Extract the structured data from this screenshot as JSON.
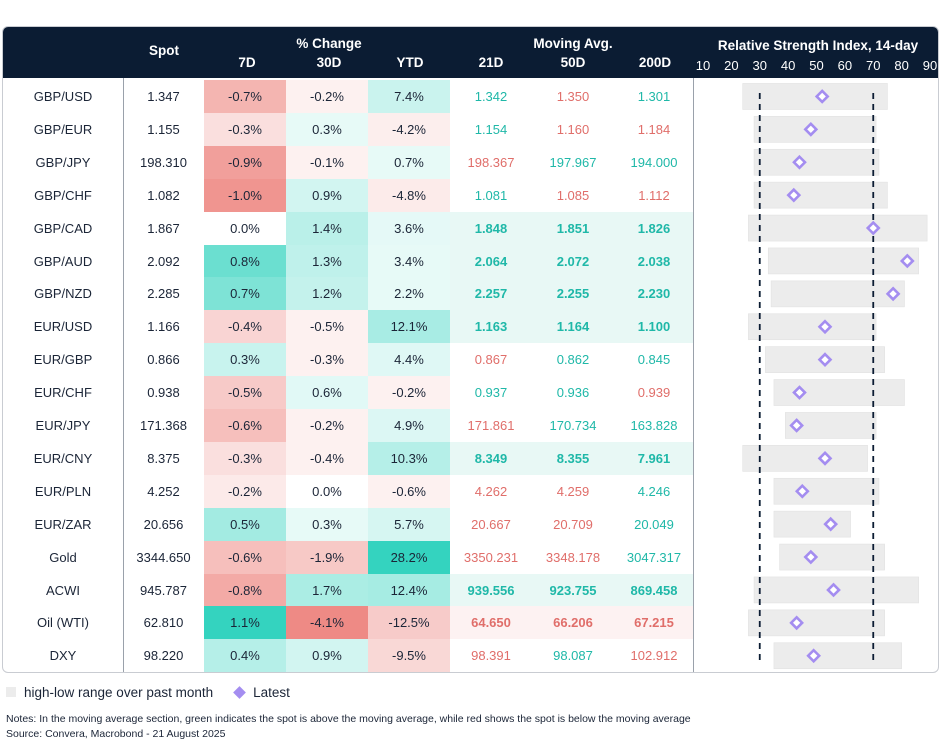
{
  "header": {
    "spot": "Spot",
    "pct_change": "% Change",
    "moving_avg": "Moving Avg.",
    "rsi_title": "Relative Strength Index, 14-day",
    "cols": [
      "7D",
      "30D",
      "YTD",
      "21D",
      "50D",
      "200D"
    ]
  },
  "chart_data": {
    "type": "table",
    "columns": [
      "Asset",
      "Spot",
      "7D",
      "30D",
      "YTD",
      "21D",
      "50D",
      "200D",
      "RSI low",
      "RSI high",
      "RSI latest"
    ],
    "rsi_axis": {
      "min": 10,
      "max": 90,
      "ticks": [
        10,
        20,
        30,
        40,
        50,
        60,
        70,
        80,
        90
      ],
      "dashed_lines": [
        30,
        70
      ]
    },
    "rows": [
      {
        "name": "GBP/USD",
        "spot": "1.347",
        "d7": "-0.7%",
        "d30": "-0.2%",
        "ytd": "7.4%",
        "ma21": "1.342",
        "ma50": "1.350",
        "ma200": "1.301",
        "rsi_low": 24,
        "rsi_high": 75,
        "rsi": 52
      },
      {
        "name": "GBP/EUR",
        "spot": "1.155",
        "d7": "-0.3%",
        "d30": "0.3%",
        "ytd": "-4.2%",
        "ma21": "1.154",
        "ma50": "1.160",
        "ma200": "1.184",
        "rsi_low": 28,
        "rsi_high": 71,
        "rsi": 48
      },
      {
        "name": "GBP/JPY",
        "spot": "198.310",
        "d7": "-0.9%",
        "d30": "-0.1%",
        "ytd": "0.7%",
        "ma21": "198.367",
        "ma50": "197.967",
        "ma200": "194.000",
        "rsi_low": 28,
        "rsi_high": 72,
        "rsi": 44
      },
      {
        "name": "GBP/CHF",
        "spot": "1.082",
        "d7": "-1.0%",
        "d30": "0.9%",
        "ytd": "-4.8%",
        "ma21": "1.081",
        "ma50": "1.085",
        "ma200": "1.112",
        "rsi_low": 28,
        "rsi_high": 75,
        "rsi": 42
      },
      {
        "name": "GBP/CAD",
        "spot": "1.867",
        "d7": "0.0%",
        "d30": "1.4%",
        "ytd": "3.6%",
        "ma21": "1.848",
        "ma50": "1.851",
        "ma200": "1.826",
        "rsi_low": 26,
        "rsi_high": 89,
        "rsi": 70
      },
      {
        "name": "GBP/AUD",
        "spot": "2.092",
        "d7": "0.8%",
        "d30": "1.3%",
        "ytd": "3.4%",
        "ma21": "2.064",
        "ma50": "2.072",
        "ma200": "2.038",
        "rsi_low": 33,
        "rsi_high": 86,
        "rsi": 82
      },
      {
        "name": "GBP/NZD",
        "spot": "2.285",
        "d7": "0.7%",
        "d30": "1.2%",
        "ytd": "2.2%",
        "ma21": "2.257",
        "ma50": "2.255",
        "ma200": "2.230",
        "rsi_low": 34,
        "rsi_high": 81,
        "rsi": 77
      },
      {
        "name": "EUR/USD",
        "spot": "1.166",
        "d7": "-0.4%",
        "d30": "-0.5%",
        "ytd": "12.1%",
        "ma21": "1.163",
        "ma50": "1.164",
        "ma200": "1.100",
        "rsi_low": 26,
        "rsi_high": 71,
        "rsi": 53
      },
      {
        "name": "EUR/GBP",
        "spot": "0.866",
        "d7": "0.3%",
        "d30": "-0.3%",
        "ytd": "4.4%",
        "ma21": "0.867",
        "ma50": "0.862",
        "ma200": "0.845",
        "rsi_low": 32,
        "rsi_high": 74,
        "rsi": 53
      },
      {
        "name": "EUR/CHF",
        "spot": "0.938",
        "d7": "-0.5%",
        "d30": "0.6%",
        "ytd": "-0.2%",
        "ma21": "0.937",
        "ma50": "0.936",
        "ma200": "0.939",
        "rsi_low": 35,
        "rsi_high": 81,
        "rsi": 44
      },
      {
        "name": "EUR/JPY",
        "spot": "171.368",
        "d7": "-0.6%",
        "d30": "-0.2%",
        "ytd": "4.9%",
        "ma21": "171.861",
        "ma50": "170.734",
        "ma200": "163.828",
        "rsi_low": 39,
        "rsi_high": 71,
        "rsi": 43
      },
      {
        "name": "EUR/CNY",
        "spot": "8.375",
        "d7": "-0.3%",
        "d30": "-0.4%",
        "ytd": "10.3%",
        "ma21": "8.349",
        "ma50": "8.355",
        "ma200": "7.961",
        "rsi_low": 24,
        "rsi_high": 68,
        "rsi": 53
      },
      {
        "name": "EUR/PLN",
        "spot": "4.252",
        "d7": "-0.2%",
        "d30": "0.0%",
        "ytd": "-0.6%",
        "ma21": "4.262",
        "ma50": "4.259",
        "ma200": "4.246",
        "rsi_low": 35,
        "rsi_high": 72,
        "rsi": 45
      },
      {
        "name": "EUR/ZAR",
        "spot": "20.656",
        "d7": "0.5%",
        "d30": "0.3%",
        "ytd": "5.7%",
        "ma21": "20.667",
        "ma50": "20.709",
        "ma200": "20.049",
        "rsi_low": 35,
        "rsi_high": 62,
        "rsi": 55
      },
      {
        "name": "Gold",
        "spot": "3344.650",
        "d7": "-0.6%",
        "d30": "-1.9%",
        "ytd": "28.2%",
        "ma21": "3350.231",
        "ma50": "3348.178",
        "ma200": "3047.317",
        "rsi_low": 37,
        "rsi_high": 74,
        "rsi": 48
      },
      {
        "name": "ACWI",
        "spot": "945.787",
        "d7": "-0.8%",
        "d30": "1.7%",
        "ytd": "12.4%",
        "ma21": "939.556",
        "ma50": "923.755",
        "ma200": "869.458",
        "rsi_low": 28,
        "rsi_high": 86,
        "rsi": 56
      },
      {
        "name": "Oil (WTI)",
        "spot": "62.810",
        "d7": "1.1%",
        "d30": "-4.1%",
        "ytd": "-12.5%",
        "ma21": "64.650",
        "ma50": "66.206",
        "ma200": "67.215",
        "rsi_low": 26,
        "rsi_high": 74,
        "rsi": 43
      },
      {
        "name": "DXY",
        "spot": "98.220",
        "d7": "0.4%",
        "d30": "0.9%",
        "ytd": "-9.5%",
        "ma21": "98.391",
        "ma50": "98.087",
        "ma200": "102.912",
        "rsi_low": 35,
        "rsi_high": 80,
        "rsi": 49
      }
    ]
  },
  "legend": {
    "range": "high-low range over past month",
    "latest": "Latest"
  },
  "notes": {
    "text": "Notes: In the moving average section, green indicates the spot is above the moving average, while red shows the spot is below the moving average",
    "source": "Source: Convera, Macrobond - 21 August 2025"
  },
  "colors": {
    "header_bg": "#0b1c33",
    "green_text": "#1fb8a8",
    "red_text": "#e06e6a",
    "ma_above_bg": "#e8f8f5",
    "ma_below_bg": "#fdf2f2",
    "range_bar": "#ececec",
    "latest_marker": "#a48df0"
  }
}
